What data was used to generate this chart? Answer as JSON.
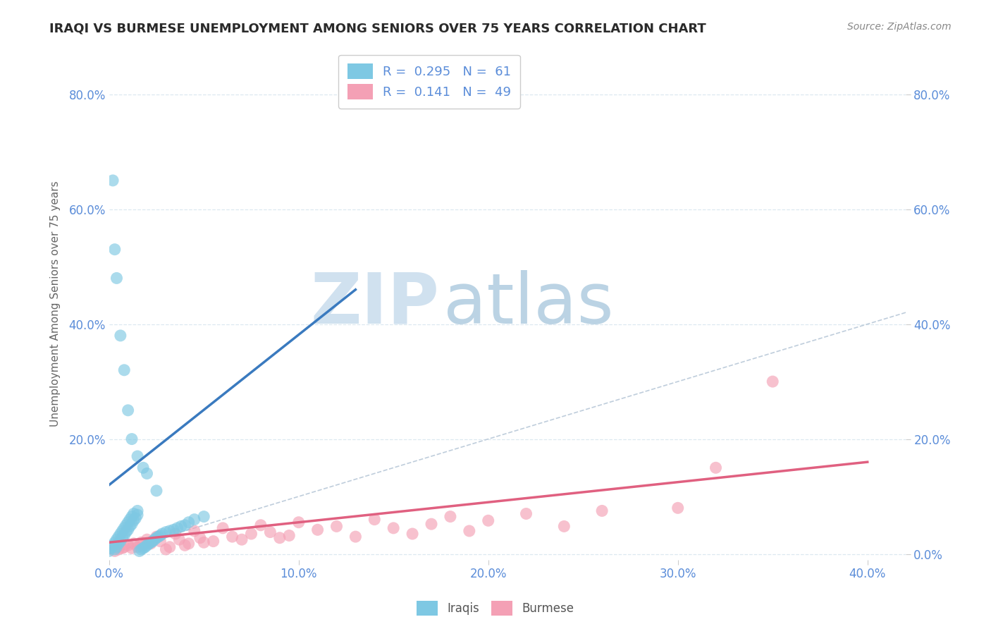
{
  "title": "IRAQI VS BURMESE UNEMPLOYMENT AMONG SENIORS OVER 75 YEARS CORRELATION CHART",
  "source": "Source: ZipAtlas.com",
  "ylabel_label": "Unemployment Among Seniors over 75 years",
  "xlim": [
    0.0,
    0.42
  ],
  "ylim": [
    -0.01,
    0.88
  ],
  "iraqis_color": "#7ec8e3",
  "burmese_color": "#f4a0b5",
  "iraqis_line_color": "#3a7abf",
  "burmese_line_color": "#e06080",
  "ref_line_color": "#b8c8d8",
  "watermark_zip": "ZIP",
  "watermark_atlas": "atlas",
  "watermark_color_zip": "#c8dced",
  "watermark_color_atlas": "#b0cce0",
  "title_color": "#2a2a2a",
  "axis_tick_color": "#5b8dd9",
  "grid_color": "#dce8f0",
  "iraqis_x": [
    0.0,
    0.001,
    0.002,
    0.003,
    0.003,
    0.004,
    0.004,
    0.005,
    0.005,
    0.006,
    0.006,
    0.007,
    0.007,
    0.008,
    0.008,
    0.009,
    0.009,
    0.01,
    0.01,
    0.011,
    0.011,
    0.012,
    0.012,
    0.013,
    0.013,
    0.014,
    0.015,
    0.015,
    0.016,
    0.017,
    0.018,
    0.019,
    0.02,
    0.021,
    0.022,
    0.023,
    0.024,
    0.025,
    0.026,
    0.027,
    0.028,
    0.03,
    0.032,
    0.034,
    0.036,
    0.038,
    0.04,
    0.042,
    0.045,
    0.05,
    0.004,
    0.006,
    0.008,
    0.01,
    0.012,
    0.015,
    0.018,
    0.02,
    0.025,
    0.002,
    0.003
  ],
  "iraqis_y": [
    0.005,
    0.01,
    0.015,
    0.008,
    0.02,
    0.012,
    0.025,
    0.018,
    0.03,
    0.022,
    0.035,
    0.028,
    0.04,
    0.032,
    0.045,
    0.038,
    0.05,
    0.042,
    0.055,
    0.048,
    0.06,
    0.052,
    0.065,
    0.058,
    0.07,
    0.062,
    0.075,
    0.068,
    0.005,
    0.008,
    0.01,
    0.012,
    0.015,
    0.018,
    0.02,
    0.022,
    0.025,
    0.028,
    0.03,
    0.032,
    0.035,
    0.038,
    0.04,
    0.042,
    0.045,
    0.048,
    0.05,
    0.055,
    0.06,
    0.065,
    0.48,
    0.38,
    0.32,
    0.25,
    0.2,
    0.17,
    0.15,
    0.14,
    0.11,
    0.65,
    0.53
  ],
  "burmese_x": [
    0.003,
    0.005,
    0.007,
    0.008,
    0.01,
    0.012,
    0.013,
    0.015,
    0.017,
    0.018,
    0.02,
    0.022,
    0.025,
    0.027,
    0.03,
    0.032,
    0.035,
    0.037,
    0.04,
    0.042,
    0.045,
    0.048,
    0.05,
    0.055,
    0.06,
    0.065,
    0.07,
    0.075,
    0.08,
    0.085,
    0.09,
    0.095,
    0.1,
    0.11,
    0.12,
    0.13,
    0.14,
    0.15,
    0.16,
    0.17,
    0.18,
    0.19,
    0.2,
    0.22,
    0.24,
    0.26,
    0.3,
    0.32,
    0.35
  ],
  "burmese_y": [
    0.005,
    0.008,
    0.01,
    0.012,
    0.015,
    0.01,
    0.018,
    0.012,
    0.02,
    0.015,
    0.025,
    0.018,
    0.03,
    0.022,
    0.008,
    0.012,
    0.035,
    0.025,
    0.015,
    0.018,
    0.04,
    0.028,
    0.02,
    0.022,
    0.045,
    0.03,
    0.025,
    0.035,
    0.05,
    0.038,
    0.028,
    0.032,
    0.055,
    0.042,
    0.048,
    0.03,
    0.06,
    0.045,
    0.035,
    0.052,
    0.065,
    0.04,
    0.058,
    0.07,
    0.048,
    0.075,
    0.08,
    0.15,
    0.3
  ],
  "iraqis_line_x": [
    0.0,
    0.13
  ],
  "iraqis_line_y": [
    0.12,
    0.46
  ],
  "burmese_line_x": [
    0.0,
    0.4
  ],
  "burmese_line_y": [
    0.02,
    0.16
  ]
}
